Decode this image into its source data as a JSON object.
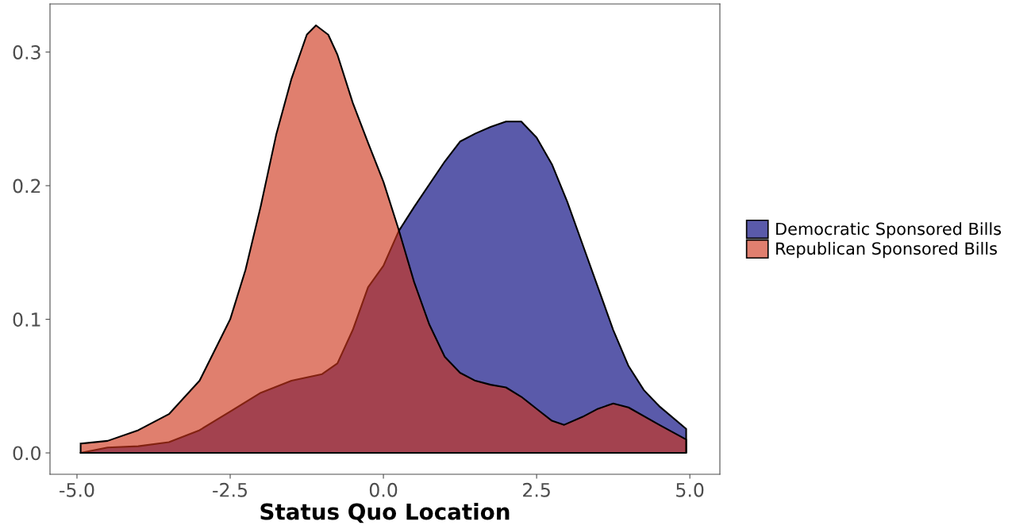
{
  "chart_data": {
    "type": "area",
    "xlabel": "Status Quo Location",
    "xlim": [
      -5.44,
      5.49
    ],
    "ylim": [
      -0.016,
      0.336
    ],
    "xticks": [
      {
        "value": -5,
        "label": "-5.0"
      },
      {
        "value": -2.5,
        "label": "-2.5"
      },
      {
        "value": 0,
        "label": "0.0"
      },
      {
        "value": 2.5,
        "label": "2.5"
      },
      {
        "value": 5,
        "label": "5.0"
      }
    ],
    "yticks": [
      {
        "value": 0,
        "label": "0.0"
      },
      {
        "value": 0.1,
        "label": "0.1"
      },
      {
        "value": 0.2,
        "label": "0.2"
      },
      {
        "value": 0.3,
        "label": "0.3"
      }
    ],
    "grid": false,
    "legend": "right",
    "series": [
      {
        "name": "Democratic Sponsored Bills",
        "color": "#5a5aaa",
        "x": [
          -4.94,
          -4.5,
          -4.0,
          -3.5,
          -3.0,
          -2.5,
          -2.0,
          -1.5,
          -1.0,
          -0.75,
          -0.5,
          -0.25,
          0,
          0.25,
          0.5,
          1.0,
          1.25,
          1.5,
          1.75,
          2.0,
          2.25,
          2.5,
          2.75,
          3.0,
          3.25,
          3.5,
          3.75,
          4.0,
          4.25,
          4.5,
          4.94
        ],
        "values": [
          0.0,
          0.004,
          0.005,
          0.008,
          0.017,
          0.031,
          0.045,
          0.054,
          0.059,
          0.067,
          0.092,
          0.124,
          0.14,
          0.166,
          0.184,
          0.218,
          0.233,
          0.239,
          0.244,
          0.248,
          0.248,
          0.236,
          0.216,
          0.188,
          0.156,
          0.124,
          0.092,
          0.065,
          0.047,
          0.035,
          0.018
        ]
      },
      {
        "name": "Republican Sponsored Bills",
        "color": "#e07f6f",
        "x": [
          -4.94,
          -4.5,
          -4.0,
          -3.5,
          -3.0,
          -2.5,
          -2.25,
          -2.0,
          -1.75,
          -1.5,
          -1.25,
          -1.1,
          -0.9,
          -0.75,
          -0.5,
          -0.25,
          0,
          0.25,
          0.5,
          0.75,
          1.0,
          1.25,
          1.5,
          1.75,
          2.0,
          2.25,
          2.5,
          2.75,
          2.95,
          3.25,
          3.5,
          3.75,
          4.0,
          4.5,
          4.94
        ],
        "values": [
          0.007,
          0.009,
          0.017,
          0.029,
          0.054,
          0.1,
          0.137,
          0.185,
          0.238,
          0.28,
          0.313,
          0.32,
          0.313,
          0.298,
          0.262,
          0.232,
          0.203,
          0.167,
          0.128,
          0.096,
          0.072,
          0.06,
          0.054,
          0.051,
          0.049,
          0.042,
          0.033,
          0.024,
          0.021,
          0.027,
          0.033,
          0.037,
          0.034,
          0.021,
          0.01
        ]
      }
    ]
  }
}
